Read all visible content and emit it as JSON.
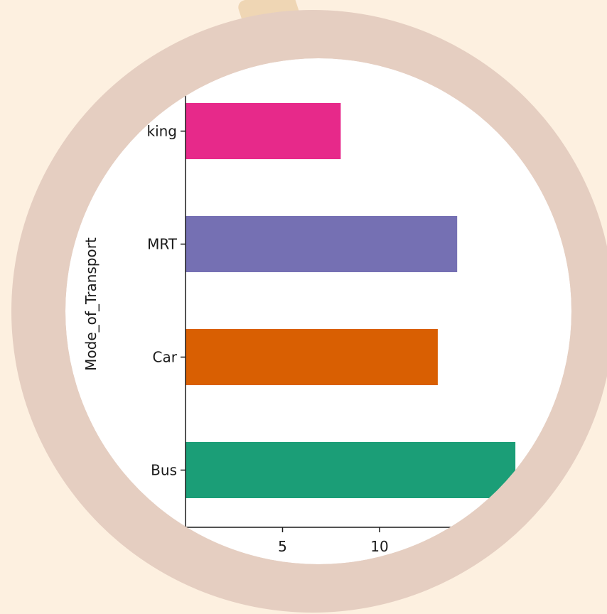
{
  "colors": {
    "background": "#fdf0e0",
    "ring": "#e5cec1",
    "top_accent": "#efd6b4",
    "plot_background": "#ffffff",
    "axis": "#1a1a1a"
  },
  "chart_data": {
    "type": "bar",
    "orientation": "horizontal",
    "title": "",
    "xlabel": "",
    "ylabel": "Mode_of_Transport",
    "categories": [
      "Bus",
      "Car",
      "MRT",
      "king"
    ],
    "values": [
      17,
      13,
      14,
      8
    ],
    "bar_colors": [
      "#1b9e77",
      "#d95f02",
      "#7570b3",
      "#e7298a"
    ],
    "xlim": [
      0,
      20
    ],
    "x_ticks": [
      5,
      10
    ],
    "x_tick_labels": [
      "5",
      "10"
    ],
    "grid": false,
    "legend": "none"
  }
}
